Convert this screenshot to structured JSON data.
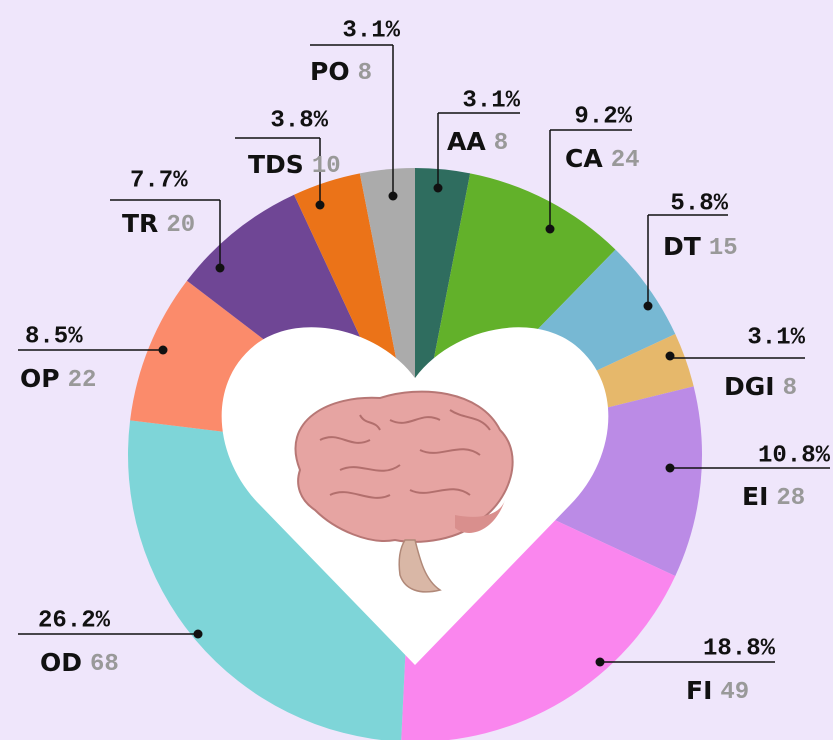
{
  "chart_data": {
    "type": "donut",
    "categories": [
      "AA",
      "CA",
      "DT",
      "DGI",
      "EI",
      "FI",
      "OD",
      "OP",
      "TR",
      "TDS",
      "PO"
    ],
    "values": [
      8,
      24,
      15,
      8,
      28,
      49,
      68,
      22,
      20,
      10,
      8
    ],
    "shares": [
      3.1,
      9.2,
      5.8,
      3.1,
      10.8,
      18.8,
      26.2,
      8.5,
      7.7,
      3.8,
      3.1
    ],
    "share_labels": [
      "3.1%",
      "9.2%",
      "5.8%",
      "3.1%",
      "10.8%",
      "18.8%",
      "26.2%",
      "8.5%",
      "7.7%",
      "3.8%",
      "3.1%"
    ],
    "colors": [
      "#2f6d5f",
      "#62b12a",
      "#77b8d3",
      "#e6b86b",
      "#bb8be6",
      "#fa86ee",
      "#7ed5d8",
      "#fb8b6b",
      "#6f4695",
      "#eb7318",
      "#ababab"
    ]
  }
}
